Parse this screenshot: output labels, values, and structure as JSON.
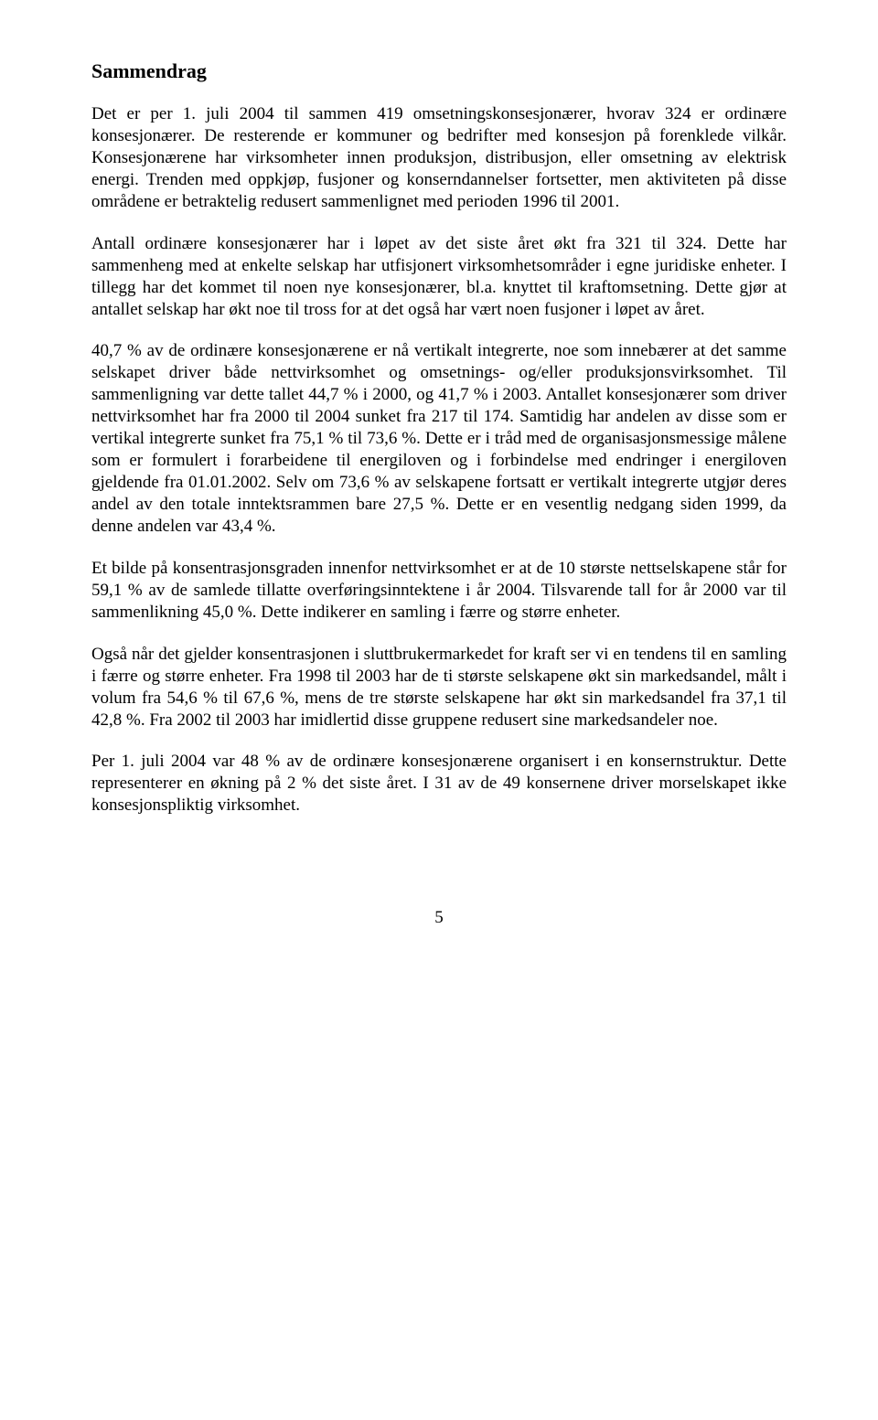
{
  "document": {
    "heading": "Sammendrag",
    "paragraphs": [
      "Det er per 1. juli 2004 til sammen 419 omsetningskonsesjonærer, hvorav 324 er ordinære konsesjonærer. De resterende er kommuner og bedrifter med konsesjon på forenklede vilkår. Konsesjonærene har virksomheter innen produksjon, distribusjon, eller omsetning av elektrisk energi. Trenden med oppkjøp, fusjoner og konserndannelser fortsetter, men aktiviteten på disse områdene er betraktelig redusert sammenlignet med perioden 1996 til 2001.",
      "Antall ordinære konsesjonærer har i løpet av det siste året økt fra 321 til 324. Dette har sammenheng med at enkelte selskap har utfisjonert virksomhetsområder i egne juridiske enheter. I tillegg har det kommet til noen nye konsesjonærer, bl.a. knyttet til kraftomsetning. Dette gjør at antallet selskap har økt noe til tross for at det også har vært noen fusjoner i løpet av året.",
      "40,7 % av de ordinære konsesjonærene er nå vertikalt integrerte, noe som innebærer at det samme selskapet driver både nettvirksomhet og omsetnings- og/eller produksjonsvirksomhet. Til sammenligning var dette tallet 44,7 % i 2000, og 41,7 % i 2003. Antallet konsesjonærer som driver nettvirksomhet har fra 2000 til 2004 sunket fra 217 til 174. Samtidig har andelen av disse som er vertikal integrerte sunket fra 75,1 % til 73,6 %. Dette er i tråd med de organisasjonsmessige målene som er formulert i forarbeidene til energiloven og i forbindelse med endringer i energiloven gjeldende fra 01.01.2002. Selv om 73,6 % av selskapene fortsatt er vertikalt integrerte utgjør deres andel av den totale inntektsrammen bare 27,5 %. Dette er en vesentlig nedgang siden 1999, da denne andelen var 43,4 %.",
      "Et bilde på konsentrasjonsgraden innenfor nettvirksomhet er at de 10 største nettselskapene står for 59,1 % av de samlede tillatte overføringsinntektene i år 2004. Tilsvarende tall for år 2000 var til sammenlikning 45,0 %. Dette indikerer en samling i færre og større enheter.",
      "Også når det gjelder konsentrasjonen i sluttbrukermarkedet for kraft ser vi en tendens til en samling i færre og større enheter. Fra 1998 til 2003 har de ti største selskapene økt sin markedsandel, målt i volum fra 54,6 % til 67,6 %, mens de tre største selskapene har økt sin markedsandel fra 37,1 til 42,8 %. Fra 2002 til 2003 har imidlertid disse gruppene redusert sine markedsandeler noe.",
      "Per 1. juli 2004 var 48 % av de ordinære konsesjonærene organisert i en konsernstruktur. Dette representerer en økning på 2 % det siste året. I 31 av de 49 konsernene driver morselskapet ikke konsesjonspliktig virksomhet."
    ],
    "page_number": "5"
  },
  "styles": {
    "font_family": "Times New Roman",
    "heading_font_size": 22,
    "body_font_size": 19,
    "text_color": "#000000",
    "background_color": "#ffffff",
    "line_height": 1.26,
    "text_align": "justify"
  }
}
